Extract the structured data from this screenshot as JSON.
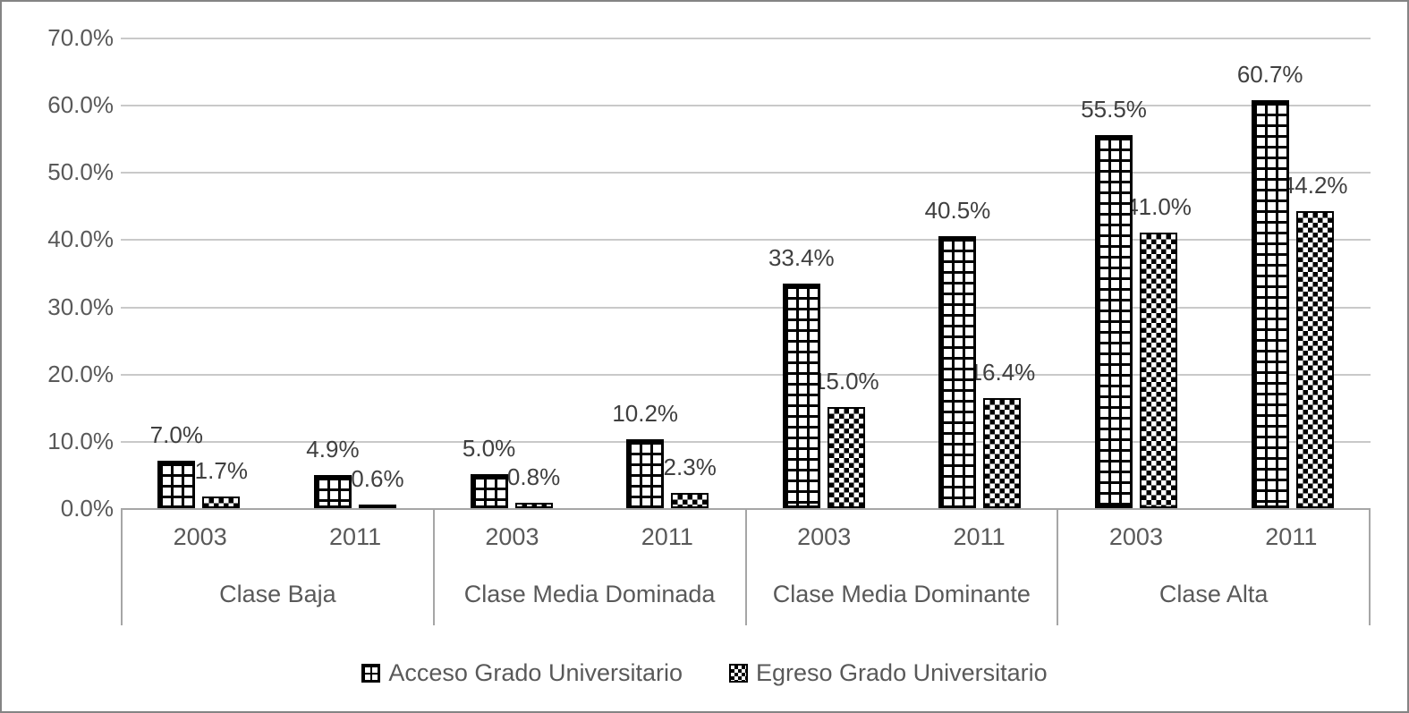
{
  "chart_data": {
    "type": "bar",
    "orientation": "vertical",
    "ylim": [
      0,
      70
    ],
    "y_ticks": [
      "70.0%",
      "60.0%",
      "50.0%",
      "40.0%",
      "30.0%",
      "20.0%",
      "10.0%",
      "0.0%"
    ],
    "grid": true,
    "legend_position": "bottom",
    "series": [
      {
        "name": "Acceso Grado Universitario",
        "pattern": "grid-crosshatch",
        "color": "#000000"
      },
      {
        "name": "Egreso Grado Universitario",
        "pattern": "diamond-checker",
        "color": "#000000"
      }
    ],
    "groups": [
      {
        "label": "Clase Baja",
        "bars": [
          {
            "year": "2003",
            "acceso": 7.0,
            "egreso": 1.7,
            "acceso_label": "7.0%",
            "egreso_label": "1.7%"
          },
          {
            "year": "2011",
            "acceso": 4.9,
            "egreso": 0.6,
            "acceso_label": "4.9%",
            "egreso_label": "0.6%"
          }
        ]
      },
      {
        "label": "Clase Media Dominada",
        "bars": [
          {
            "year": "2003",
            "acceso": 5.0,
            "egreso": 0.8,
            "acceso_label": "5.0%",
            "egreso_label": "0.8%"
          },
          {
            "year": "2011",
            "acceso": 10.2,
            "egreso": 2.3,
            "acceso_label": "10.2%",
            "egreso_label": "2.3%"
          }
        ]
      },
      {
        "label": "Clase Media Dominante",
        "bars": [
          {
            "year": "2003",
            "acceso": 33.4,
            "egreso": 15.0,
            "acceso_label": "33.4%",
            "egreso_label": "15.0%"
          },
          {
            "year": "2011",
            "acceso": 40.5,
            "egreso": 16.4,
            "acceso_label": "40.5%",
            "egreso_label": "16.4%"
          }
        ]
      },
      {
        "label": "Clase Alta",
        "bars": [
          {
            "year": "2003",
            "acceso": 55.5,
            "egreso": 41.0,
            "acceso_label": "55.5%",
            "egreso_label": "41.0%"
          },
          {
            "year": "2011",
            "acceso": 60.7,
            "egreso": 44.2,
            "acceso_label": "60.7%",
            "egreso_label": "44.2%"
          }
        ]
      }
    ],
    "colors": {
      "bar_fill": "#000000",
      "gridline": "#c9c9c9",
      "axis_line": "#a6a6a6",
      "data_label_text": "#3f3f3f",
      "axis_text": "#595959",
      "frame_border": "#848484",
      "background": "#ffffff"
    }
  }
}
